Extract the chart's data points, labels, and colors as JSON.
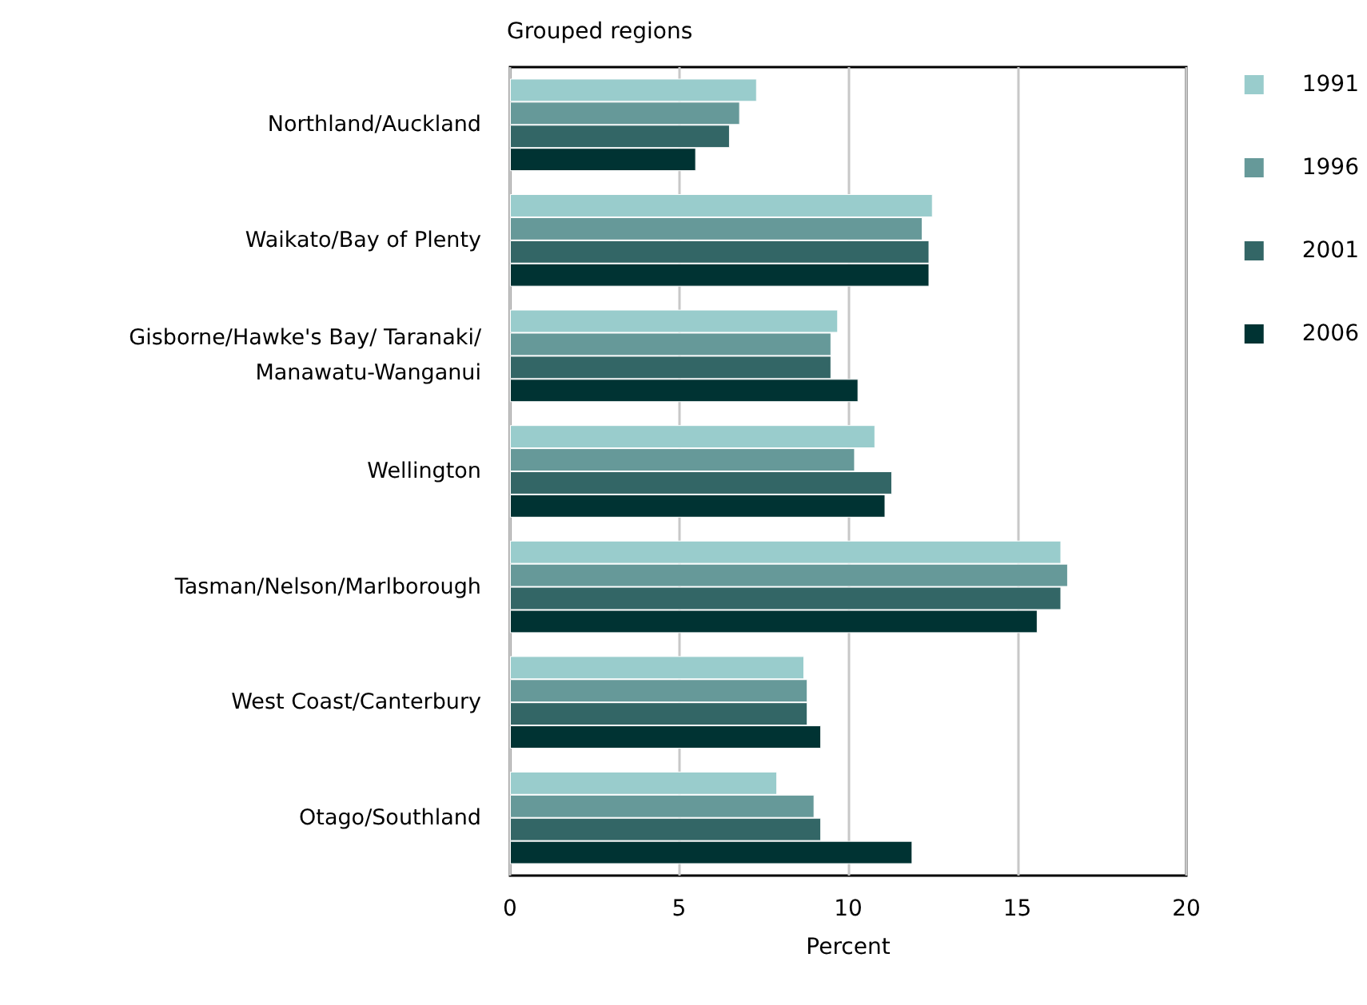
{
  "chart_data": {
    "type": "bar",
    "orientation": "horizontal",
    "title": "Grouped regions",
    "xlabel": "Percent",
    "categories": [
      "Northland/Auckland",
      "Waikato/Bay of Plenty",
      "Gisborne/Hawke's Bay/ Taranaki/Manawatu-Wanganui",
      "Wellington",
      "Tasman/Nelson/Marlborough",
      "West Coast/Canterbury",
      "Otago/Southland"
    ],
    "series": [
      {
        "name": "1991",
        "color": "#99cccc",
        "values": [
          7.3,
          12.5,
          9.7,
          10.8,
          16.3,
          8.7,
          7.9
        ]
      },
      {
        "name": "1996",
        "color": "#669999",
        "values": [
          6.8,
          12.2,
          9.5,
          10.2,
          16.5,
          8.8,
          9.0
        ]
      },
      {
        "name": "2001",
        "color": "#336666",
        "values": [
          6.5,
          12.4,
          9.5,
          11.3,
          16.3,
          8.8,
          9.2
        ]
      },
      {
        "name": "2006",
        "color": "#003333",
        "values": [
          5.5,
          12.4,
          10.3,
          11.1,
          15.6,
          9.2,
          11.9
        ]
      }
    ],
    "xlim": [
      0,
      20
    ],
    "xticks": [
      0,
      5,
      10,
      15,
      20
    ],
    "grid": "x",
    "legend": "right"
  }
}
